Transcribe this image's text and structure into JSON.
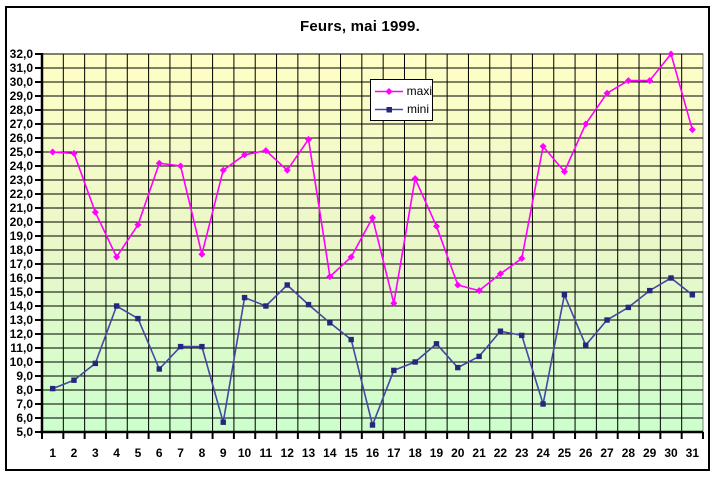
{
  "window": {
    "background_color": "#ffffff",
    "border_color": "#000000"
  },
  "chart_data": {
    "type": "line",
    "title": "Feurs, mai 1999.",
    "xlabel": "",
    "ylabel": "",
    "x_tick_labels": [
      "1",
      "2",
      "3",
      "4",
      "5",
      "6",
      "7",
      "8",
      "9",
      "10",
      "11",
      "12",
      "13",
      "14",
      "15",
      "16",
      "17",
      "18",
      "19",
      "20",
      "21",
      "22",
      "23",
      "24",
      "25",
      "26",
      "27",
      "28",
      "29",
      "30",
      "31"
    ],
    "y_axis": {
      "min": 5.0,
      "max": 32.0,
      "step": 1.0,
      "decimal_separator": ",",
      "tick_labels": [
        "32,0",
        "31,0",
        "30,0",
        "29,0",
        "28,0",
        "27,0",
        "26,0",
        "25,0",
        "24,0",
        "23,0",
        "22,0",
        "21,0",
        "20,0",
        "19,0",
        "18,0",
        "17,0",
        "16,0",
        "15,0",
        "14,0",
        "13,0",
        "12,0",
        "11,0",
        "10,0",
        "9,0",
        "8,0",
        "7,0",
        "6,0",
        "5,0"
      ]
    },
    "series": [
      {
        "name": "maxi",
        "marker": "diamond",
        "line_color": "#ff00ff",
        "marker_color": "#ff00ff",
        "values": [
          25.0,
          24.9,
          20.7,
          17.5,
          19.8,
          24.2,
          24.0,
          17.7,
          23.7,
          24.8,
          25.1,
          23.7,
          25.9,
          16.1,
          17.5,
          20.3,
          14.2,
          23.1,
          19.7,
          15.5,
          15.1,
          16.3,
          17.4,
          25.4,
          23.6,
          27.0,
          29.2,
          30.1,
          30.1,
          32.0,
          26.6
        ]
      },
      {
        "name": "mini",
        "marker": "square",
        "line_color": "#4646a5",
        "marker_color": "#26267f",
        "values": [
          8.1,
          8.7,
          9.9,
          14.0,
          13.1,
          9.5,
          11.1,
          11.1,
          5.7,
          14.6,
          14.0,
          15.5,
          14.1,
          12.8,
          11.6,
          5.5,
          9.4,
          10.0,
          11.3,
          9.6,
          10.4,
          12.2,
          11.9,
          7.0,
          14.8,
          11.2,
          13.0,
          13.9,
          15.1,
          16.0,
          14.8
        ]
      }
    ],
    "plot_style": {
      "background_gradient_top": "#ffffc6",
      "background_gradient_mid": "#eaf7c9",
      "background_gradient_bottom": "#ccffcc",
      "grid_color": "#000000",
      "plot_border_color": "#808080",
      "axis_color": "#000000",
      "grid": "both"
    },
    "legend_position": "top-center"
  },
  "legend": {
    "maxi_label": "maxi",
    "mini_label": "mini"
  }
}
